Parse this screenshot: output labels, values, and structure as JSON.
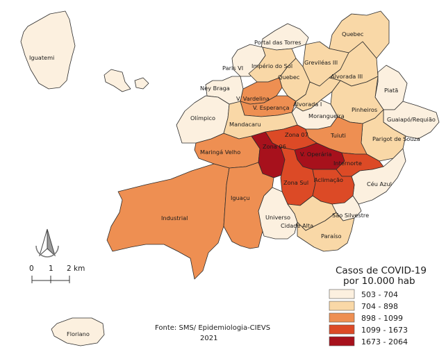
{
  "legend": {
    "title_line1": "Casos de COVID-19",
    "title_line2": "por 10.000 hab",
    "classes": [
      {
        "label": "503 - 704",
        "color": "#fcf0df"
      },
      {
        "label": "704 - 898",
        "color": "#f9d8a7"
      },
      {
        "label": "898 - 1099",
        "color": "#ee8f52"
      },
      {
        "label": "1099 - 1673",
        "color": "#dc4a26"
      },
      {
        "label": "1673 - 2064",
        "color": "#a7111c"
      }
    ]
  },
  "scale": {
    "tick0": "0",
    "tick1": "1",
    "tick2": "2 km"
  },
  "source": {
    "line1": "Fonte: SMS/ Epidemiologia-CIEVS",
    "line2": "2021"
  },
  "regions": [
    {
      "name": "Iguatemi",
      "class": 0
    },
    {
      "name": "Floriano",
      "class": 0
    },
    {
      "name": "Portal das Torres",
      "class": 0
    },
    {
      "name": "Paris VI",
      "class": 0
    },
    {
      "name": "Ney Braga",
      "class": 0
    },
    {
      "name": "Olímpico",
      "class": 0
    },
    {
      "name": "Universo",
      "class": 0
    },
    {
      "name": "Piatã",
      "class": 0
    },
    {
      "name": "Guaiapó/Requião",
      "class": 0
    },
    {
      "name": "Céu Azul",
      "class": 0
    },
    {
      "name": "Morangueira",
      "class": 0
    },
    {
      "name": "São Silvestre",
      "class": 0
    },
    {
      "name": "Quebec",
      "class": 1
    },
    {
      "name": "Greviléas III",
      "class": 1
    },
    {
      "name": "Alvorada III",
      "class": 1
    },
    {
      "name": "Império do Sol",
      "class": 1
    },
    {
      "name": "Alvorada I",
      "class": 1
    },
    {
      "name": "Pinheiros",
      "class": 1
    },
    {
      "name": "Parigot de Souza",
      "class": 1
    },
    {
      "name": "Mandacaru",
      "class": 1
    },
    {
      "name": "Cidade Alta",
      "class": 1
    },
    {
      "name": "Paraíso",
      "class": 1
    },
    {
      "name": "V. Vardelina",
      "class": 2
    },
    {
      "name": "V. Esperança",
      "class": 2
    },
    {
      "name": "Maringá Velho",
      "class": 2
    },
    {
      "name": "Industrial",
      "class": 2
    },
    {
      "name": "Iguaçu",
      "class": 2
    },
    {
      "name": "Tuiuti",
      "class": 2
    },
    {
      "name": "Zona 07",
      "class": 3
    },
    {
      "name": "Zona Sul",
      "class": 3
    },
    {
      "name": "Aclimação",
      "class": 3
    },
    {
      "name": "Internorte",
      "class": 3
    },
    {
      "name": "Zona 06",
      "class": 4
    },
    {
      "name": "V. Operária",
      "class": 4
    }
  ]
}
